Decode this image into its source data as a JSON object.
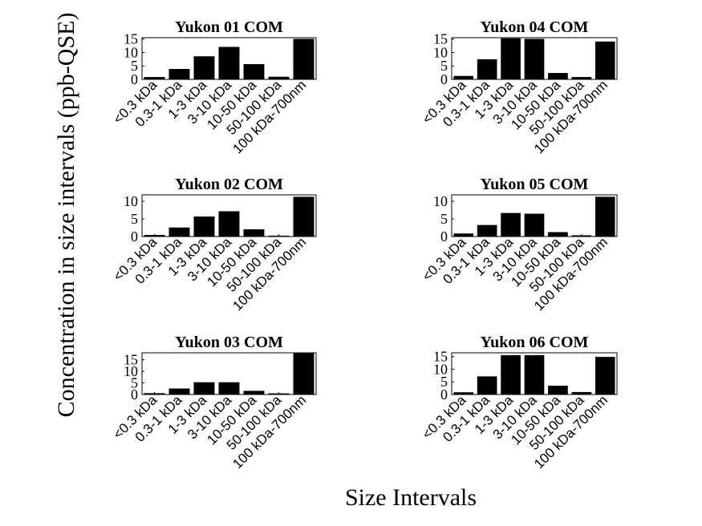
{
  "figure": {
    "ylabel": "Concentration in size intervals (ppb-QSE)",
    "xlabel": "Size Intervals"
  },
  "chart_data": [
    {
      "type": "bar",
      "title": "Yukon 01 COM",
      "categories": [
        "<0.3 kDa",
        "0.3-1 kDa",
        "1-3 kDa",
        "3-10 kDa",
        "10-50 kDa",
        "50-100 kDa",
        "100 kDa-700nm"
      ],
      "values": [
        0.8,
        3.8,
        8.5,
        12,
        5.6,
        0.9,
        15
      ],
      "ylim": [
        0,
        15.5
      ],
      "yticks": [
        0,
        5,
        10,
        15
      ],
      "grid": false,
      "bar_color": "#000000"
    },
    {
      "type": "bar",
      "title": "Yukon 04 COM",
      "categories": [
        "<0.3 kDa",
        "0.3-1 kDa",
        "1-3 kDa",
        "3-10 kDa",
        "10-50 kDa",
        "50-100 kDa",
        "100 kDa-700nm"
      ],
      "values": [
        1.2,
        7.4,
        15.2,
        15,
        2.3,
        0.8,
        14
      ],
      "ylim": [
        0,
        15.5
      ],
      "yticks": [
        0,
        5,
        10,
        15
      ],
      "grid": false,
      "bar_color": "#000000"
    },
    {
      "type": "bar",
      "title": "Yukon 02 COM",
      "categories": [
        "<0.3 kDa",
        "0.3-1 kDa",
        "1-3 kDa",
        "3-10 kDa",
        "10-50 kDa",
        "50-100 kDa",
        "100 kDa-700nm"
      ],
      "values": [
        0.4,
        2.5,
        5.6,
        7.1,
        2,
        0.2,
        11.2
      ],
      "ylim": [
        0,
        11.8
      ],
      "yticks": [
        0,
        5,
        10
      ],
      "grid": false,
      "bar_color": "#000000"
    },
    {
      "type": "bar",
      "title": "Yukon 05 COM",
      "categories": [
        "<0.3 kDa",
        "0.3-1 kDa",
        "1-3 kDa",
        "3-10 kDa",
        "10-50 kDa",
        "50-100 kDa",
        "100 kDa-700nm"
      ],
      "values": [
        0.8,
        3.2,
        6.6,
        6.4,
        1.2,
        0.3,
        11.2
      ],
      "ylim": [
        0,
        11.8
      ],
      "yticks": [
        0,
        5,
        10
      ],
      "grid": false,
      "bar_color": "#000000"
    },
    {
      "type": "bar",
      "title": "Yukon 03 COM",
      "categories": [
        "<0.3 kDa",
        "0.3-1 kDa",
        "1-3 kDa",
        "3-10 kDa",
        "10-50 kDa",
        "50-100 kDa",
        "100 kDa-700nm"
      ],
      "values": [
        0.5,
        2.5,
        5.2,
        5.2,
        1.5,
        0.4,
        17.7
      ],
      "ylim": [
        0,
        18
      ],
      "yticks": [
        0,
        5,
        10,
        15
      ],
      "grid": false,
      "bar_color": "#000000"
    },
    {
      "type": "bar",
      "title": "Yukon 06 COM",
      "categories": [
        "<0.3 kDa",
        "0.3-1 kDa",
        "1-3 kDa",
        "3-10 kDa",
        "10-50 kDa",
        "50-100 kDa",
        "100 kDa-700nm"
      ],
      "values": [
        0.8,
        7.1,
        15.5,
        15.5,
        3.4,
        0.9,
        14.8
      ],
      "ylim": [
        0,
        16.5
      ],
      "yticks": [
        0,
        5,
        10,
        15
      ],
      "grid": false,
      "bar_color": "#000000"
    }
  ]
}
